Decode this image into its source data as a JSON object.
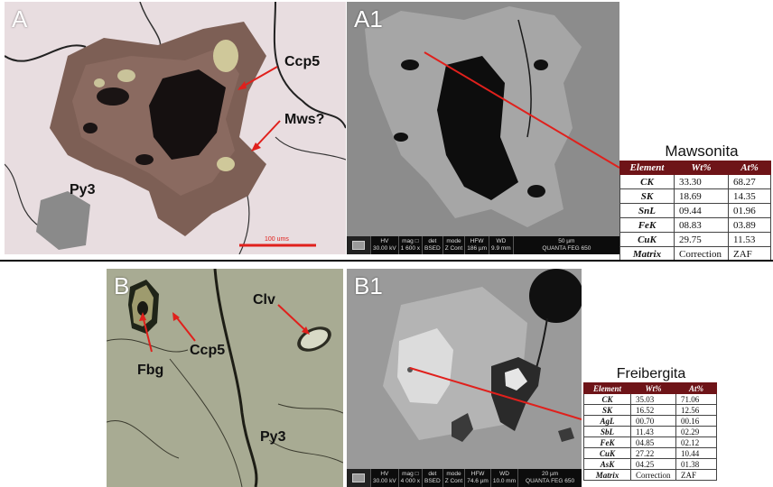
{
  "panels": {
    "A": {
      "letter": "A",
      "labels": {
        "ccp5": "Ccp5",
        "mws": "Mws?",
        "py3": "Py3"
      },
      "scale_bar": "100 ums"
    },
    "A1": {
      "letter": "A1",
      "sem": {
        "hv": [
          "HV",
          "30.00 kV"
        ],
        "mag": [
          "mag □",
          "1 600 x"
        ],
        "det": [
          "det",
          "BSED"
        ],
        "mode": [
          "mode",
          "Z Cont"
        ],
        "hfw": [
          "HFW",
          "186 µm"
        ],
        "wd": [
          "WD",
          "9.9 mm"
        ],
        "scale": "50 µm",
        "instrument": "QUANTA FEG 650"
      }
    },
    "B": {
      "letter": "B",
      "labels": {
        "ccp5": "Ccp5",
        "clv": "Clv",
        "fbg": "Fbg",
        "py3": "Py3"
      }
    },
    "B1": {
      "letter": "B1",
      "sem": {
        "hv": [
          "HV",
          "30.00 kV"
        ],
        "mag": [
          "mag □",
          "4 000 x"
        ],
        "det": [
          "det",
          "BSED"
        ],
        "mode": [
          "mode",
          "Z Cont"
        ],
        "hfw": [
          "HFW",
          "74.6 µm"
        ],
        "wd": [
          "WD",
          "10.0 mm"
        ],
        "scale": "20 µm",
        "instrument": "QUANTA FEG 650"
      }
    }
  },
  "tables": {
    "mawsonita": {
      "title": "Mawsonita",
      "headers": [
        "Element",
        "Wt%",
        "At%"
      ],
      "rows": [
        [
          "CK",
          "33.30",
          "68.27"
        ],
        [
          "SK",
          "18.69",
          "14.35"
        ],
        [
          "SnL",
          "09.44",
          "01.96"
        ],
        [
          "FeK",
          "08.83",
          "03.89"
        ],
        [
          "CuK",
          "29.75",
          "11.53"
        ],
        [
          "Matrix",
          "Correction",
          "ZAF"
        ]
      ]
    },
    "freibergita": {
      "title": "Freibergita",
      "headers": [
        "Element",
        "Wt%",
        "At%"
      ],
      "rows": [
        [
          "CK",
          "35.03",
          "71.06"
        ],
        [
          "SK",
          "16.52",
          "12.56"
        ],
        [
          "AgL",
          "00.70",
          "00.16"
        ],
        [
          "SbL",
          "11.43",
          "02.29"
        ],
        [
          "FeK",
          "04.85",
          "02.12"
        ],
        [
          "CuK",
          "27.22",
          "10.44"
        ],
        [
          "AsK",
          "04.25",
          "01.38"
        ],
        [
          "Matrix",
          "Correction",
          "ZAF"
        ]
      ]
    }
  },
  "colors": {
    "table_header": "#6e1418",
    "arrow": "#e0201c",
    "pyrite": "#e9dedf",
    "sem_gray": "#8c8c8c"
  }
}
